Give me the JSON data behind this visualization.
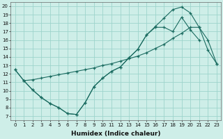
{
  "xlabel": "Humidex (Indice chaleur)",
  "bg_color": "#ceeee8",
  "grid_color": "#9dd4cc",
  "line_color": "#1a6b60",
  "xlim": [
    -0.5,
    23.5
  ],
  "ylim": [
    6.5,
    20.5
  ],
  "xticks": [
    0,
    1,
    2,
    3,
    4,
    5,
    6,
    7,
    8,
    9,
    10,
    11,
    12,
    13,
    14,
    15,
    16,
    17,
    18,
    19,
    20,
    21,
    22,
    23
  ],
  "yticks": [
    7,
    8,
    9,
    10,
    11,
    12,
    13,
    14,
    15,
    16,
    17,
    18,
    19,
    20
  ],
  "line1_x": [
    0,
    1,
    2,
    3,
    4,
    5,
    6,
    7,
    8,
    9,
    10,
    11,
    12,
    13,
    14,
    15,
    16,
    17,
    18,
    19,
    20,
    21,
    22,
    23
  ],
  "line1_y": [
    12.5,
    11.2,
    10.1,
    9.2,
    8.5,
    8.0,
    7.3,
    7.2,
    8.6,
    10.5,
    11.5,
    12.3,
    12.8,
    13.9,
    14.9,
    16.6,
    17.6,
    18.6,
    19.6,
    19.9,
    19.2,
    17.5,
    14.8,
    13.2
  ],
  "line2_x": [
    1,
    2,
    3,
    4,
    5,
    6,
    7,
    8,
    9,
    10,
    11,
    12,
    13,
    14,
    15,
    16,
    17,
    18,
    19,
    20,
    21,
    22,
    23
  ],
  "line2_y": [
    11.2,
    11.3,
    11.5,
    11.7,
    11.9,
    12.1,
    12.3,
    12.5,
    12.7,
    13.0,
    13.2,
    13.5,
    13.8,
    14.1,
    14.5,
    15.0,
    15.5,
    16.2,
    16.8,
    17.5,
    17.5,
    16.0,
    13.2
  ],
  "line3_x": [
    0,
    1,
    2,
    3,
    4,
    5,
    6,
    7,
    8,
    9,
    10,
    11,
    12,
    13,
    14,
    15,
    16,
    17,
    18,
    19,
    20,
    21
  ],
  "line3_y": [
    12.5,
    11.2,
    10.1,
    9.2,
    8.5,
    8.0,
    7.3,
    7.2,
    8.6,
    10.5,
    11.5,
    12.3,
    12.8,
    13.9,
    14.9,
    16.6,
    17.5,
    17.5,
    17.0,
    18.7,
    17.2,
    16.0
  ]
}
